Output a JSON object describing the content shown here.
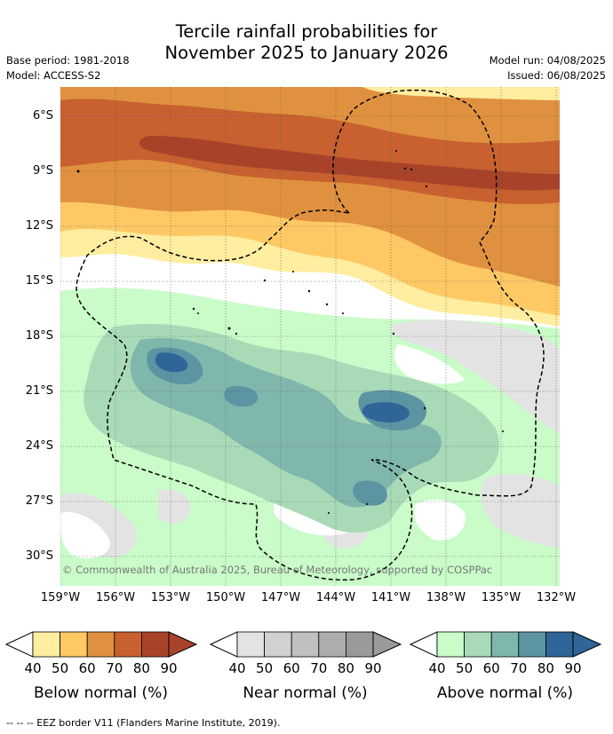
{
  "header": {
    "title_line1": "Tercile rainfall probabilities for",
    "title_line2": "November 2025 to January 2026",
    "base_period": "Base period: 1981-2018",
    "model": "Model: ACCESS-S2",
    "model_run": "Model run: 04/08/2025",
    "issued": "Issued: 06/08/2025"
  },
  "map": {
    "lat_labels": [
      "6°S",
      "9°S",
      "12°S",
      "15°S",
      "18°S",
      "21°S",
      "24°S",
      "27°S",
      "30°S"
    ],
    "lon_labels": [
      "159°W",
      "156°W",
      "153°W",
      "150°W",
      "147°W",
      "144°W",
      "141°W",
      "138°W",
      "135°W",
      "132°W"
    ],
    "credit": "© Commonwealth of Australia 2025, Bureau of Meteorology, supported by COSPPac",
    "colors": {
      "below": [
        "#ffeda0",
        "#fec965",
        "#e0913f",
        "#c8612f",
        "#a8432a"
      ],
      "near": [
        "#e3e3e3",
        "#d1d1d1",
        "#c0c0c0",
        "#adadad",
        "#9a9a9a"
      ],
      "above": [
        "#c9fcc9",
        "#a8dab8",
        "#7fb7ad",
        "#5c94a2",
        "#2f6598"
      ]
    }
  },
  "legends": [
    {
      "title": "Below normal (%)",
      "ticks": [
        "40",
        "50",
        "60",
        "70",
        "80",
        "90"
      ]
    },
    {
      "title": "Near normal (%)",
      "ticks": [
        "40",
        "50",
        "60",
        "70",
        "80",
        "90"
      ]
    },
    {
      "title": "Above normal (%)",
      "ticks": [
        "40",
        "50",
        "60",
        "70",
        "80",
        "90"
      ]
    }
  ],
  "footnote": "--  --  -- EEZ border V11 (Flanders Marine Institute, 2019)."
}
